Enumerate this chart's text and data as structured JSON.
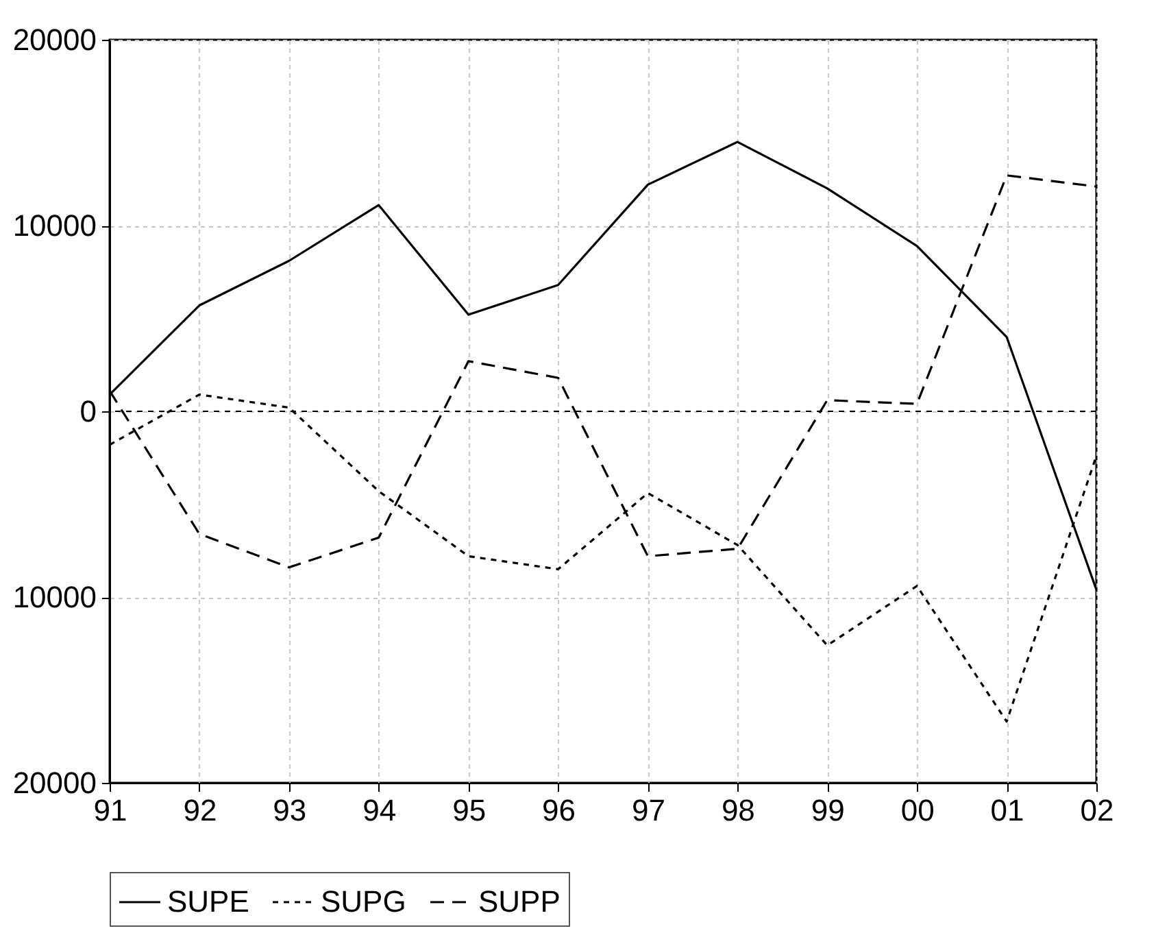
{
  "chart_data": {
    "type": "line",
    "categories": [
      "91",
      "92",
      "93",
      "94",
      "95",
      "96",
      "97",
      "98",
      "99",
      "00",
      "01",
      "02"
    ],
    "series": [
      {
        "name": "SUPE",
        "color": "#000000",
        "line_style": "solid",
        "values": [
          900,
          5700,
          8100,
          11100,
          5200,
          6800,
          12200,
          14500,
          12000,
          8900,
          4000,
          -9600
        ]
      },
      {
        "name": "SUPG",
        "color": "#000000",
        "line_style": "dotted",
        "values": [
          -1800,
          900,
          200,
          -4300,
          -7800,
          -8500,
          -4400,
          -7200,
          -12600,
          -9400,
          -16700,
          -2400
        ]
      },
      {
        "name": "SUPP",
        "color": "#000000",
        "line_style": "dashed",
        "values": [
          1100,
          -6600,
          -8400,
          -6800,
          2700,
          1800,
          -7800,
          -7400,
          600,
          400,
          12700,
          12100
        ]
      }
    ],
    "ylim": [
      -20000,
      20000
    ],
    "yticks": [
      {
        "value": -20000,
        "label": "20000"
      },
      {
        "value": -10000,
        "label": "10000"
      },
      0,
      10000,
      20000
    ],
    "ref_lines": [
      {
        "axis": "y",
        "value": 0,
        "color": "#000000",
        "line_style": "dotted"
      }
    ],
    "grid": true,
    "legend": "bottom"
  }
}
